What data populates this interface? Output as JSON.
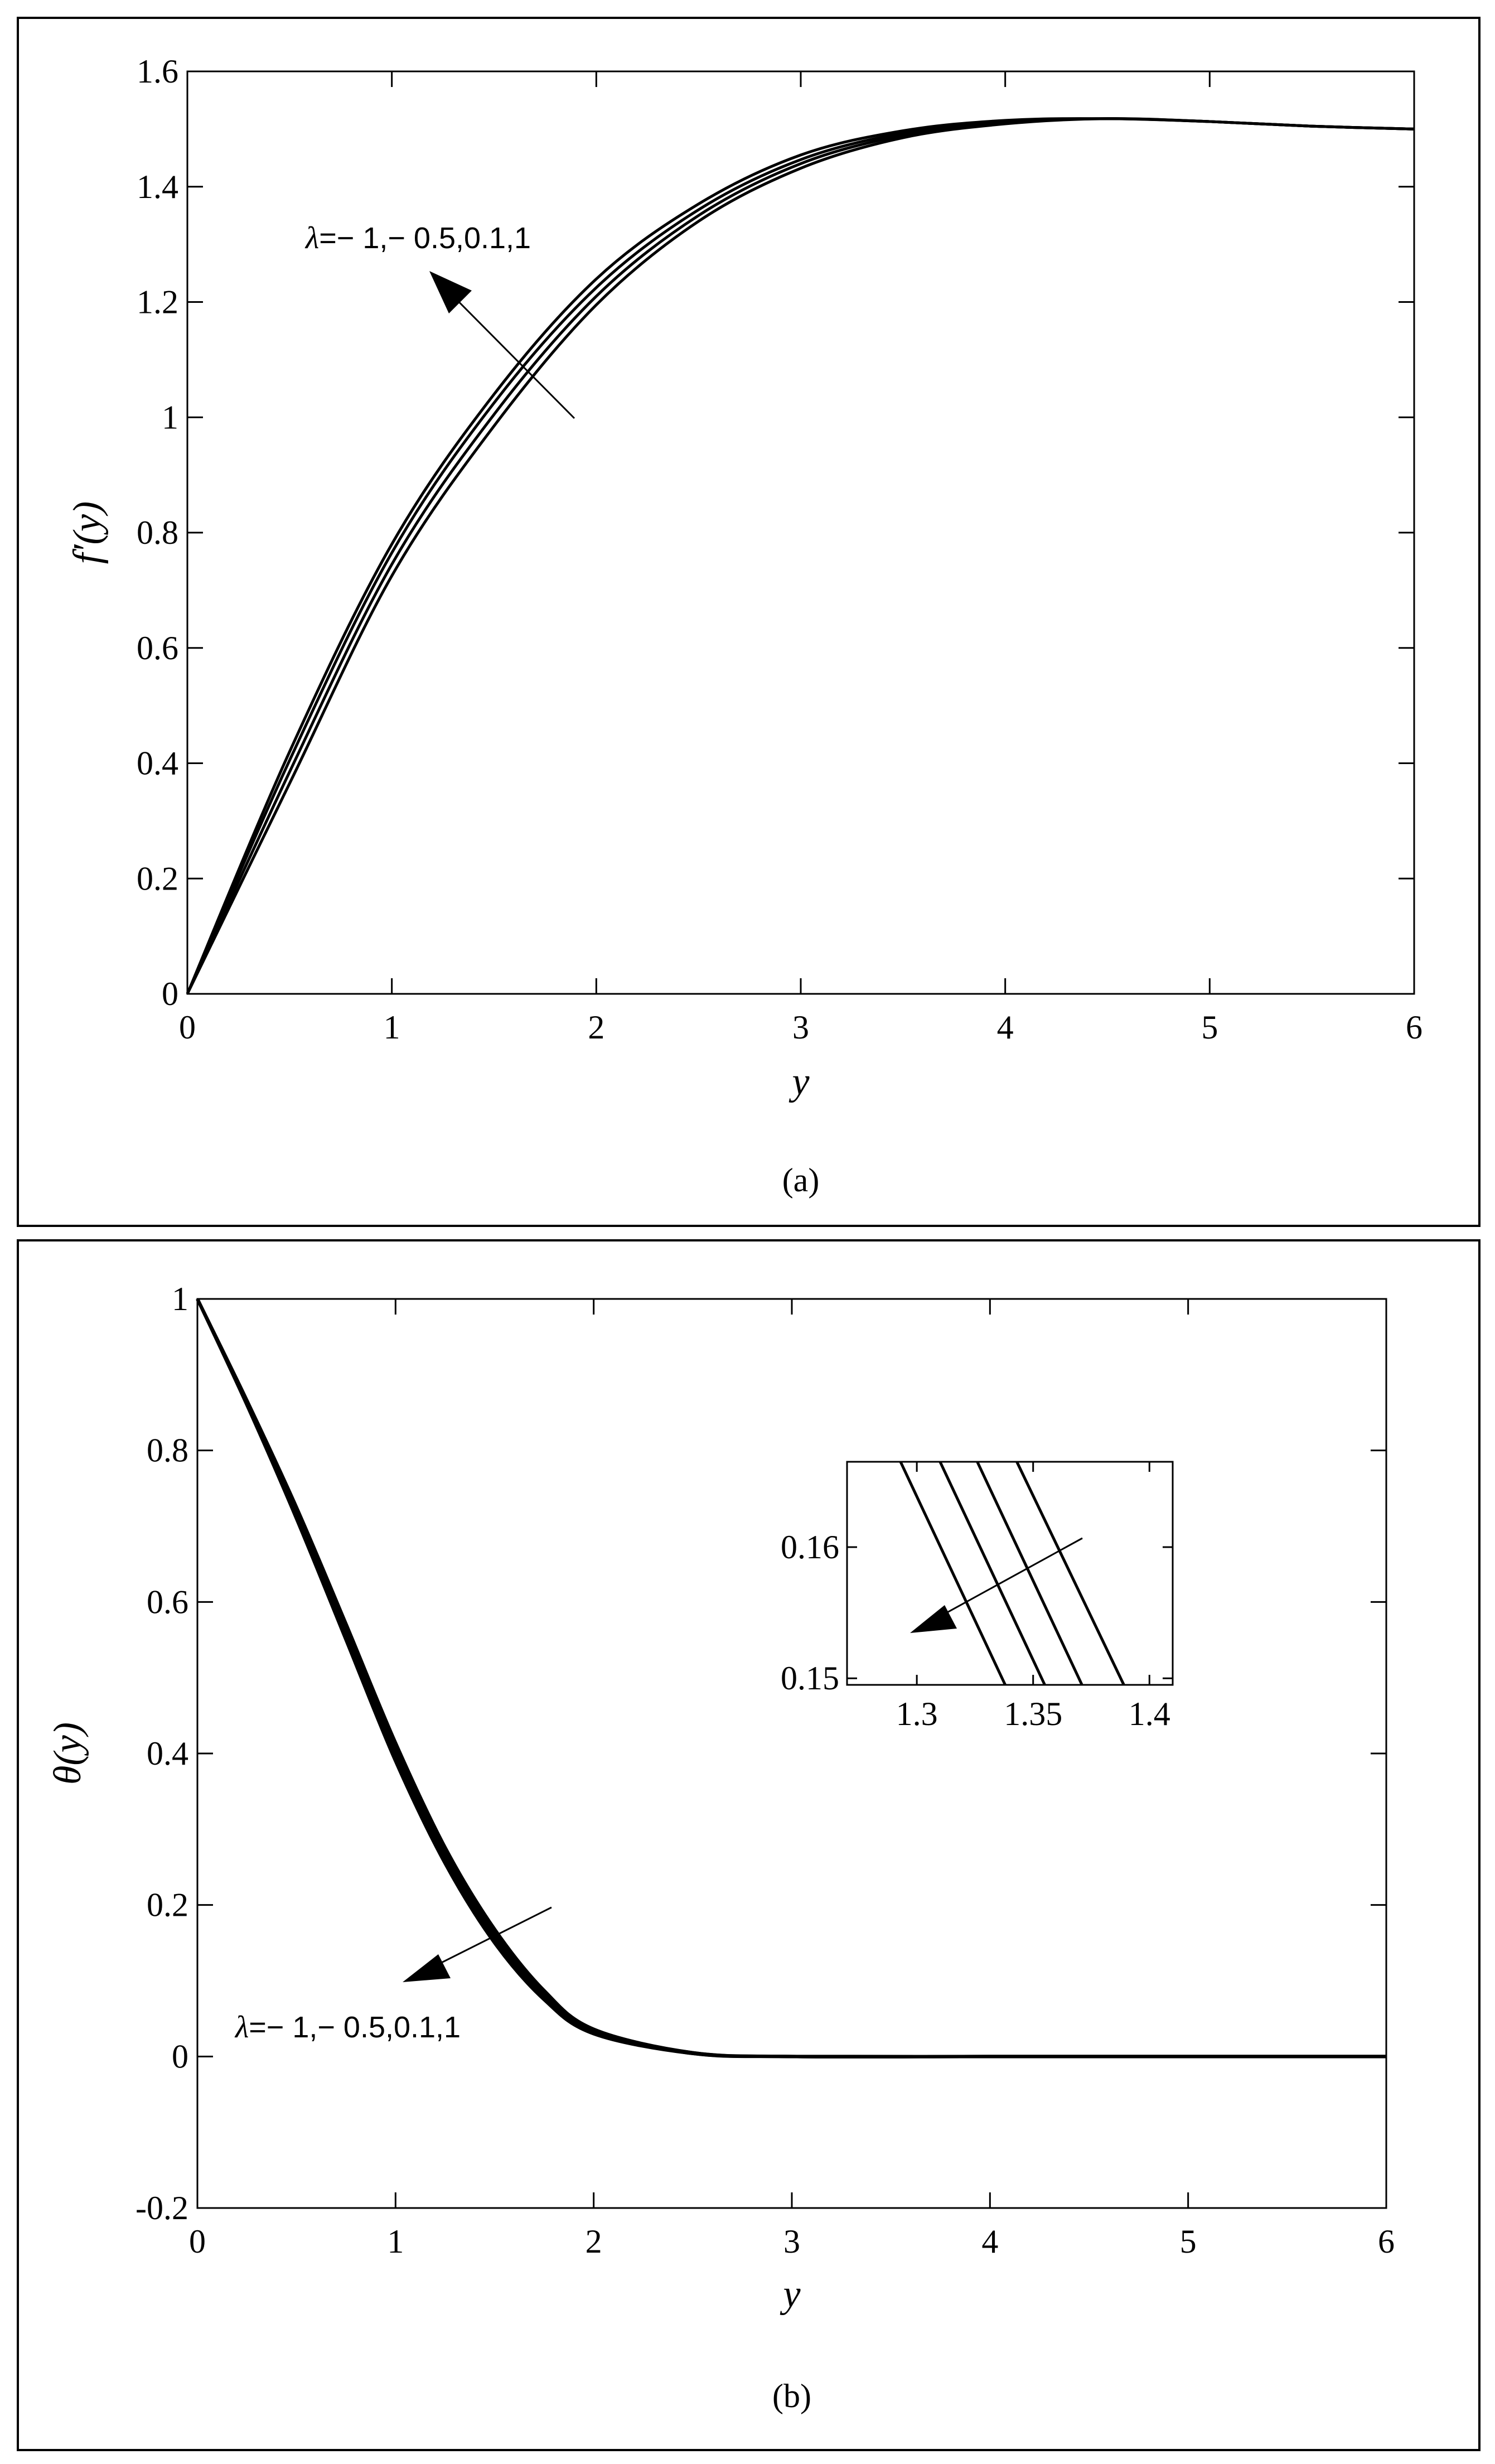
{
  "chart_data": [
    {
      "type": "line",
      "panel": "(a)",
      "xlabel": "y",
      "ylabel": "f′(y)",
      "xlim": [
        0,
        6
      ],
      "ylim": [
        0,
        1.6
      ],
      "xticks": [
        "0",
        "1",
        "2",
        "3",
        "4",
        "5",
        "6"
      ],
      "yticks": [
        "0",
        "0.2",
        "0.4",
        "0.6",
        "0.8",
        "1",
        "1.2",
        "1.4",
        "1.6"
      ],
      "grid": false,
      "annotation": "λ=− 1,− 0.5,0.1,1",
      "line_color": "#000000",
      "series": [
        {
          "x": [
            0,
            0.5,
            1,
            1.5,
            2,
            2.5,
            3,
            3.5,
            4,
            4.5,
            5,
            5.5,
            6
          ],
          "values": [
            0,
            0.42,
            0.78,
            1.04,
            1.24,
            1.37,
            1.455,
            1.497,
            1.515,
            1.518,
            1.513,
            1.505,
            1.5
          ]
        },
        {
          "x": [
            0,
            0.5,
            1,
            1.5,
            2,
            2.5,
            3,
            3.5,
            4,
            4.5,
            5,
            5.5,
            6
          ],
          "values": [
            0,
            0.405,
            0.765,
            1.025,
            1.225,
            1.36,
            1.447,
            1.493,
            1.513,
            1.518,
            1.513,
            1.505,
            1.5
          ]
        },
        {
          "x": [
            0,
            0.5,
            1,
            1.5,
            2,
            2.5,
            3,
            3.5,
            4,
            4.5,
            5,
            5.5,
            6
          ],
          "values": [
            0,
            0.385,
            0.745,
            1.005,
            1.21,
            1.35,
            1.44,
            1.489,
            1.511,
            1.518,
            1.513,
            1.505,
            1.5
          ]
        },
        {
          "x": [
            0,
            0.5,
            1,
            1.5,
            2,
            2.5,
            3,
            3.5,
            4,
            4.5,
            5,
            5.5,
            6
          ],
          "values": [
            0,
            0.365,
            0.725,
            0.985,
            1.195,
            1.34,
            1.432,
            1.485,
            1.509,
            1.518,
            1.513,
            1.505,
            1.5
          ]
        }
      ]
    },
    {
      "type": "line",
      "panel": "(b)",
      "xlabel": "y",
      "ylabel": "θ(y)",
      "xlim": [
        0,
        6
      ],
      "ylim": [
        -0.2,
        1
      ],
      "xticks": [
        "0",
        "1",
        "2",
        "3",
        "4",
        "5",
        "6"
      ],
      "yticks": [
        "-0.2",
        "0",
        "0.2",
        "0.4",
        "0.6",
        "0.8",
        "1"
      ],
      "grid": false,
      "annotation": "λ=− 1,− 0.5,0.1,1",
      "line_color": "#000000",
      "series": [
        {
          "x": [
            0,
            0.25,
            0.5,
            0.75,
            1,
            1.25,
            1.5,
            1.75,
            2,
            2.5,
            3,
            4,
            5,
            6
          ],
          "values": [
            1,
            0.86,
            0.71,
            0.55,
            0.39,
            0.255,
            0.15,
            0.075,
            0.03,
            0.004,
            0,
            0,
            0,
            0
          ]
        },
        {
          "x": [
            0,
            0.25,
            0.5,
            0.75,
            1,
            1.25,
            1.5,
            1.75,
            2,
            2.5,
            3,
            4,
            5,
            6
          ],
          "values": [
            1,
            0.862,
            0.715,
            0.557,
            0.398,
            0.262,
            0.156,
            0.079,
            0.032,
            0.004,
            0,
            0,
            0,
            0
          ]
        },
        {
          "x": [
            0,
            0.25,
            0.5,
            0.75,
            1,
            1.25,
            1.5,
            1.75,
            2,
            2.5,
            3,
            4,
            5,
            6
          ],
          "values": [
            1,
            0.864,
            0.72,
            0.564,
            0.406,
            0.269,
            0.162,
            0.083,
            0.034,
            0.005,
            0,
            0,
            0,
            0
          ]
        },
        {
          "x": [
            0,
            0.25,
            0.5,
            0.75,
            1,
            1.25,
            1.5,
            1.75,
            2,
            2.5,
            3,
            4,
            5,
            6
          ],
          "values": [
            1,
            0.866,
            0.725,
            0.571,
            0.414,
            0.276,
            0.168,
            0.087,
            0.036,
            0.005,
            0,
            0,
            0,
            0
          ]
        }
      ],
      "inset": {
        "xlim": [
          1.27,
          1.41
        ],
        "ylim": [
          0.1495,
          0.1665
        ],
        "xticks": [
          "1.3",
          "1.35",
          "1.4"
        ],
        "yticks": [
          "0.15",
          "0.16"
        ],
        "series": [
          {
            "x": [
              1.293,
              1.338
            ],
            "values": [
              0.1665,
              0.1495
            ]
          },
          {
            "x": [
              1.31,
              1.355
            ],
            "values": [
              0.1665,
              0.1495
            ]
          },
          {
            "x": [
              1.326,
              1.371
            ],
            "values": [
              0.1665,
              0.1495
            ]
          },
          {
            "x": [
              1.343,
              1.389
            ],
            "values": [
              0.1665,
              0.1495
            ]
          }
        ]
      }
    }
  ]
}
